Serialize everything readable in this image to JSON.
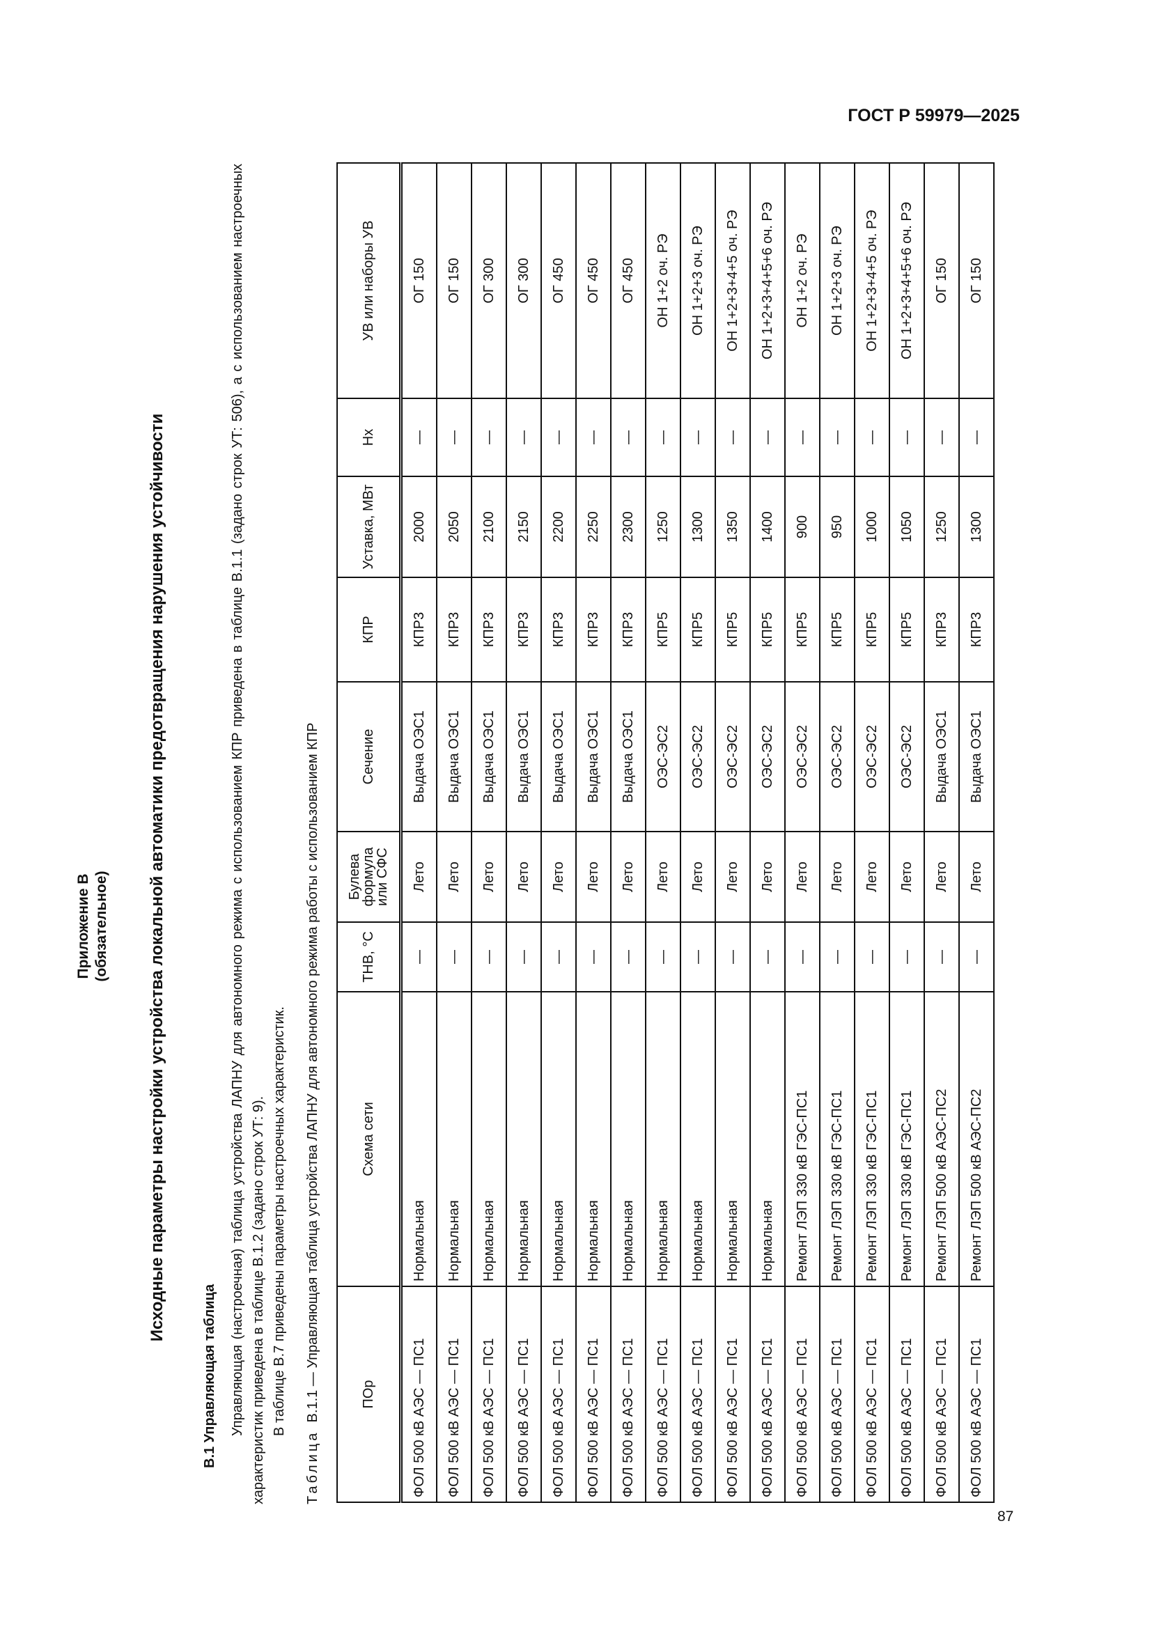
{
  "header": {
    "standard": "ГОСТ Р 59979—2025"
  },
  "appendix": {
    "title": "Приложение В",
    "status": "(обязательное)"
  },
  "main_title": "Исходные параметры настройки устройства локальной автоматики предотвращения нарушения устойчивости",
  "section": {
    "heading": "В.1 Управляющая таблица",
    "paragraph1": "Управляющая (настроечная) таблица устройства ЛАПНУ для автономного режима с использованием КПР приведена в таблице В.1.1 (задано строк УТ: 506), а с использованием настроечных характеристик приведена в таблице В.1.2 (задано строк УТ: 9).",
    "paragraph2": "В таблице В.7 приведены параметры настроечных характеристик."
  },
  "table": {
    "caption_label": "Таблица",
    "caption_text": "В.1.1 — Управляющая таблица устройства ЛАПНУ для автономного режима работы с использованием КПР",
    "columns": [
      "ПОр",
      "Схема сети",
      "ТНВ, °С",
      "Булева формула или СФС",
      "Сечение",
      "КПР",
      "Уставка, МВт",
      "Нх",
      "УВ или наборы УВ"
    ],
    "rows": [
      [
        "ФОЛ 500 кВ АЭС — ПС1",
        "Нормальная",
        "—",
        "Лето",
        "Выдача ОЭС1",
        "КПР3",
        "2000",
        "—",
        "ОГ 150"
      ],
      [
        "ФОЛ 500 кВ АЭС — ПС1",
        "Нормальная",
        "—",
        "Лето",
        "Выдача ОЭС1",
        "КПР3",
        "2050",
        "—",
        "ОГ 150"
      ],
      [
        "ФОЛ 500 кВ АЭС — ПС1",
        "Нормальная",
        "—",
        "Лето",
        "Выдача ОЭС1",
        "КПР3",
        "2100",
        "—",
        "ОГ 300"
      ],
      [
        "ФОЛ 500 кВ АЭС — ПС1",
        "Нормальная",
        "—",
        "Лето",
        "Выдача ОЭС1",
        "КПР3",
        "2150",
        "—",
        "ОГ 300"
      ],
      [
        "ФОЛ 500 кВ АЭС — ПС1",
        "Нормальная",
        "—",
        "Лето",
        "Выдача ОЭС1",
        "КПР3",
        "2200",
        "—",
        "ОГ 450"
      ],
      [
        "ФОЛ 500 кВ АЭС — ПС1",
        "Нормальная",
        "—",
        "Лето",
        "Выдача ОЭС1",
        "КПР3",
        "2250",
        "—",
        "ОГ 450"
      ],
      [
        "ФОЛ 500 кВ АЭС — ПС1",
        "Нормальная",
        "—",
        "Лето",
        "Выдача ОЭС1",
        "КПР3",
        "2300",
        "—",
        "ОГ 450"
      ],
      [
        "ФОЛ 500 кВ АЭС — ПС1",
        "Нормальная",
        "—",
        "Лето",
        "ОЭС-ЭС2",
        "КПР5",
        "1250",
        "—",
        "ОН 1+2 оч. РЭ"
      ],
      [
        "ФОЛ 500 кВ АЭС — ПС1",
        "Нормальная",
        "—",
        "Лето",
        "ОЭС-ЭС2",
        "КПР5",
        "1300",
        "—",
        "ОН 1+2+3 оч. РЭ"
      ],
      [
        "ФОЛ 500 кВ АЭС — ПС1",
        "Нормальная",
        "—",
        "Лето",
        "ОЭС-ЭС2",
        "КПР5",
        "1350",
        "—",
        "ОН 1+2+3+4+5 оч. РЭ"
      ],
      [
        "ФОЛ 500 кВ АЭС — ПС1",
        "Нормальная",
        "—",
        "Лето",
        "ОЭС-ЭС2",
        "КПР5",
        "1400",
        "—",
        "ОН 1+2+3+4+5+6 оч. РЭ"
      ],
      [
        "ФОЛ 500 кВ АЭС — ПС1",
        "Ремонт ЛЭП 330 кВ ГЭС-ПС1",
        "—",
        "Лето",
        "ОЭС-ЭС2",
        "КПР5",
        "900",
        "—",
        "ОН 1+2 оч. РЭ"
      ],
      [
        "ФОЛ 500 кВ АЭС — ПС1",
        "Ремонт ЛЭП 330 кВ ГЭС-ПС1",
        "—",
        "Лето",
        "ОЭС-ЭС2",
        "КПР5",
        "950",
        "—",
        "ОН 1+2+3 оч. РЭ"
      ],
      [
        "ФОЛ 500 кВ АЭС — ПС1",
        "Ремонт ЛЭП 330 кВ ГЭС-ПС1",
        "—",
        "Лето",
        "ОЭС-ЭС2",
        "КПР5",
        "1000",
        "—",
        "ОН 1+2+3+4+5 оч. РЭ"
      ],
      [
        "ФОЛ 500 кВ АЭС — ПС1",
        "Ремонт ЛЭП 330 кВ ГЭС-ПС1",
        "—",
        "Лето",
        "ОЭС-ЭС2",
        "КПР5",
        "1050",
        "—",
        "ОН 1+2+3+4+5+6 оч. РЭ"
      ],
      [
        "ФОЛ 500 кВ АЭС — ПС1",
        "Ремонт ЛЭП 500 кВ АЭС-ПС2",
        "—",
        "Лето",
        "Выдача ОЭС1",
        "КПР3",
        "1250",
        "—",
        "ОГ 150"
      ],
      [
        "ФОЛ 500 кВ АЭС — ПС1",
        "Ремонт ЛЭП 500 кВ АЭС-ПС2",
        "—",
        "Лето",
        "Выдача ОЭС1",
        "КПР3",
        "1300",
        "—",
        "ОГ 150"
      ]
    ]
  },
  "footer": {
    "page_number": "87"
  }
}
